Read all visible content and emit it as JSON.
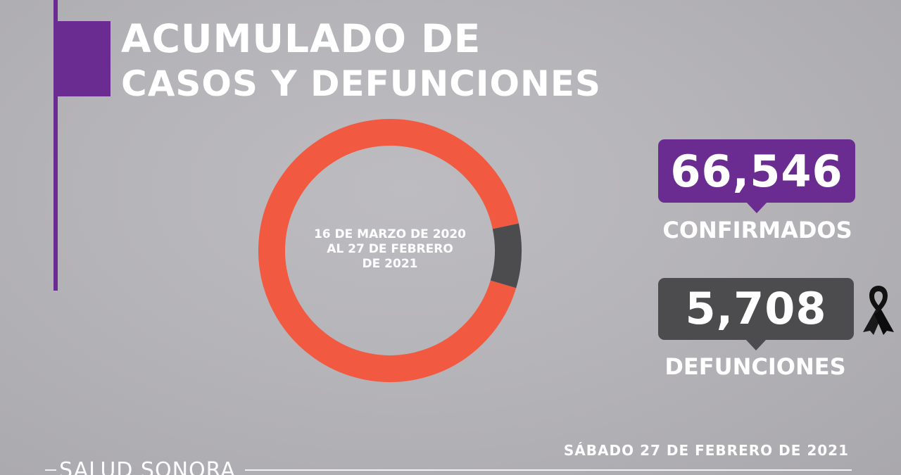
{
  "header": {
    "title_line1": "ACUMULADO DE",
    "title_line2": "CASOS Y DEFUNCIONES"
  },
  "chart_data": {
    "type": "pie",
    "donut": true,
    "title": "ACUMULADO DE CASOS Y DEFUNCIONES",
    "center_text": [
      "16 DE MARZO DE 2020",
      "AL 27 DE FEBRERO",
      "DE 2021"
    ],
    "slices": [
      {
        "label": "CONFIRMADOS",
        "value": 66546,
        "color": "#f15a40"
      },
      {
        "label": "DEFUNCIONES",
        "value": 5708,
        "color": "#4c4c4e"
      }
    ]
  },
  "stats": {
    "confirmed": {
      "value": "66,546",
      "label": "CONFIRMADOS",
      "color": "#6a2c91"
    },
    "deaths": {
      "value": "5,708",
      "label": "DEFUNCIONES",
      "color": "#4c4c4e"
    }
  },
  "icons": {
    "mourning": "black-ribbon-icon"
  },
  "footer": {
    "date": "SÁBADO 27 DE FEBRERO DE 2021",
    "brand": "SALUD SONORA"
  },
  "colors": {
    "accent_purple": "#6a2c91",
    "donut_orange": "#f15a40",
    "dark_gray": "#4c4c4e"
  }
}
